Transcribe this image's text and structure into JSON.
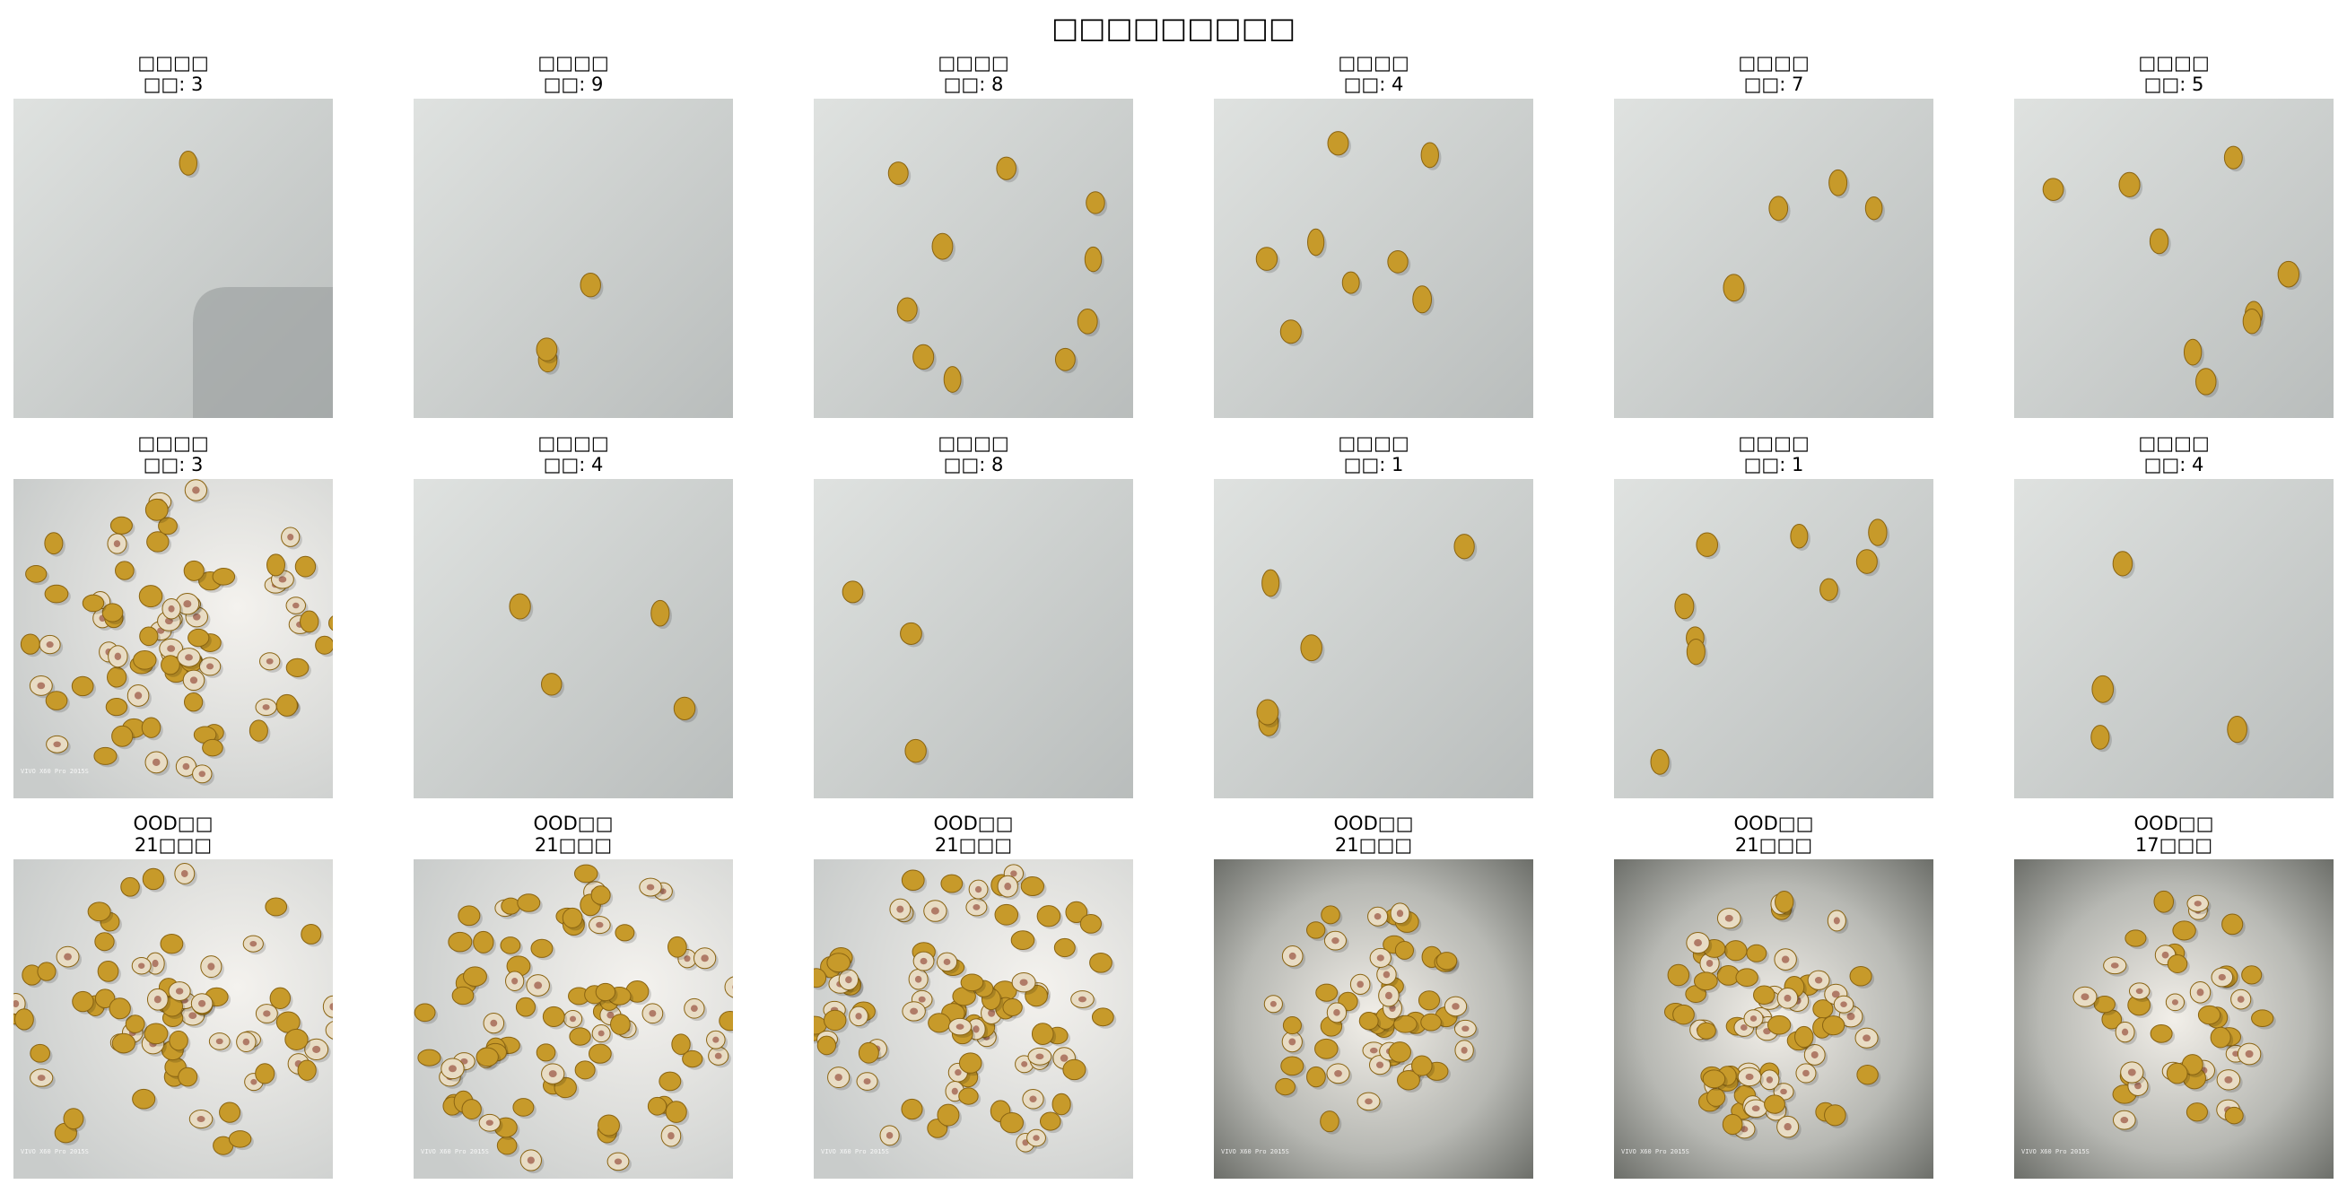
{
  "figure_title": "□□□□□□□□□",
  "panels": [
    {
      "title": "□□□□",
      "subtitle": "□□: 3",
      "image": "few-kernels-on-grey-desk",
      "kernels": 1,
      "watermark": ""
    },
    {
      "title": "□□□□",
      "subtitle": "□□: 9",
      "image": "few-kernels-on-grey-desk",
      "kernels": 3,
      "watermark": ""
    },
    {
      "title": "□□□□",
      "subtitle": "□□: 8",
      "image": "few-kernels-on-grey-desk",
      "kernels": 10,
      "watermark": ""
    },
    {
      "title": "□□□□",
      "subtitle": "□□: 4",
      "image": "few-kernels-on-grey-desk",
      "kernels": 8,
      "watermark": ""
    },
    {
      "title": "□□□□",
      "subtitle": "□□: 7",
      "image": "few-kernels-on-grey-desk",
      "kernels": 4,
      "watermark": ""
    },
    {
      "title": "□□□□",
      "subtitle": "□□: 5",
      "image": "few-kernels-on-grey-desk",
      "kernels": 9,
      "watermark": ""
    },
    {
      "title": "□□□□",
      "subtitle": "□□: 3",
      "image": "many-kernels-lit-desk",
      "kernels": 80,
      "watermark": "VIVO X60 Pro 2015S"
    },
    {
      "title": "□□□□",
      "subtitle": "□□: 4",
      "image": "few-kernels-on-grey-desk",
      "kernels": 4,
      "watermark": ""
    },
    {
      "title": "□□□□",
      "subtitle": "□□: 8",
      "image": "few-kernels-on-grey-desk",
      "kernels": 3,
      "watermark": ""
    },
    {
      "title": "□□□□",
      "subtitle": "□□: 1",
      "image": "few-kernels-on-grey-desk",
      "kernels": 5,
      "watermark": ""
    },
    {
      "title": "□□□□",
      "subtitle": "□□: 1",
      "image": "few-kernels-on-grey-desk",
      "kernels": 9,
      "watermark": ""
    },
    {
      "title": "□□□□",
      "subtitle": "□□: 4",
      "image": "few-kernels-on-grey-desk",
      "kernels": 4,
      "watermark": ""
    },
    {
      "title": "OOD□□",
      "subtitle": "21□□□",
      "image": "many-kernels-lit-desk",
      "kernels": 70,
      "watermark": "VIVO X60 Pro 2015S"
    },
    {
      "title": "OOD□□",
      "subtitle": "21□□□",
      "image": "many-kernels-lit-desk",
      "kernels": 85,
      "watermark": "VIVO X60 Pro 2015S"
    },
    {
      "title": "OOD□□",
      "subtitle": "21□□□",
      "image": "many-kernels-lit-desk",
      "kernels": 90,
      "watermark": "VIVO X60 Pro 2015S"
    },
    {
      "title": "OOD□□",
      "subtitle": "21□□□",
      "image": "many-kernels-dark-vignette",
      "kernels": 55,
      "watermark": "VIVO X60 Pro 2015S"
    },
    {
      "title": "OOD□□",
      "subtitle": "21□□□",
      "image": "many-kernels-dark-vignette",
      "kernels": 75,
      "watermark": "VIVO X60 Pro 2015S"
    },
    {
      "title": "OOD□□",
      "subtitle": "17□□□",
      "image": "many-kernels-dark-vignette",
      "kernels": 45,
      "watermark": "VIVO X60 Pro 2015S"
    }
  ],
  "colors": {
    "desk_grey": "#b9bdbc",
    "desk_light": "#dfe2e0",
    "kernel_yellow": "#c79a2a",
    "kernel_dark": "#8a6412",
    "kernel_pale": "#e8dcc4"
  }
}
